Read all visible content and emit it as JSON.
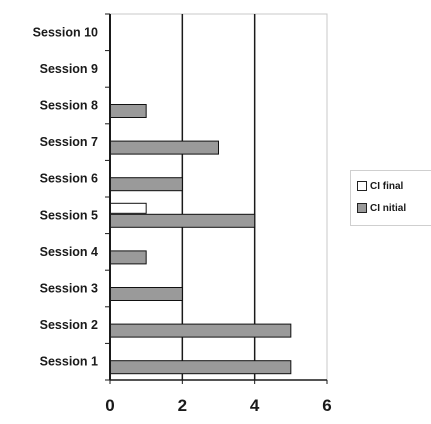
{
  "chart_data": {
    "type": "bar",
    "orientation": "horizontal",
    "categories": [
      "Session 1",
      "Session 2",
      "Session 3",
      "Session 4",
      "Session 5",
      "Session 6",
      "Session 7",
      "Session 8",
      "Session 9",
      "Session 10"
    ],
    "series": [
      {
        "name": "CI nitial",
        "values": [
          5,
          5,
          2,
          1,
          4,
          2,
          3,
          1,
          0,
          0
        ],
        "color": "#9a9a9a"
      },
      {
        "name": "CI final",
        "values": [
          0,
          0,
          0,
          0,
          1,
          0,
          0,
          0,
          0,
          0
        ],
        "color": "#ffffff"
      }
    ],
    "xlim": [
      0,
      6
    ],
    "xticks": [
      "0",
      "2",
      "4",
      "6"
    ],
    "gridlines": "vertical at 2, 4, 6",
    "legend_position": "right",
    "legend_order": [
      "CI final",
      "CI nitial"
    ]
  }
}
